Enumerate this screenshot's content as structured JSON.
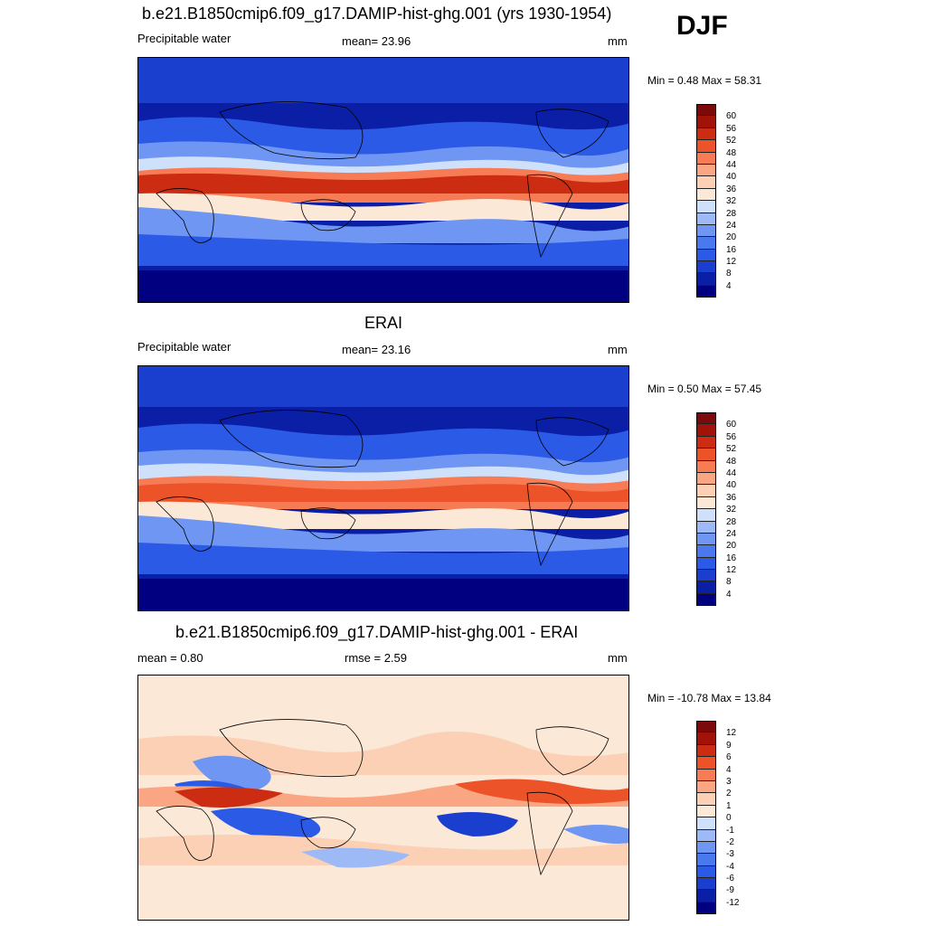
{
  "season": "DJF",
  "panels": [
    {
      "id": "model",
      "title": "b.e21.B1850cmip6.f09_g17.DAMIP-hist-ghg.001 (yrs 1930-1954)",
      "left_label": "Precipitable water",
      "center_label": "mean=  23.96",
      "right_label": "mm",
      "minmax": "Min =   0.48 Max =  58.31",
      "colorbar_labels": [
        "60",
        "56",
        "52",
        "48",
        "44",
        "40",
        "36",
        "32",
        "28",
        "24",
        "20",
        "16",
        "12",
        "8",
        "4"
      ]
    },
    {
      "id": "obs",
      "title": "ERAI",
      "left_label": "Precipitable water",
      "center_label": "mean=  23.16",
      "right_label": "mm",
      "minmax": "Min =   0.50 Max =  57.45",
      "colorbar_labels": [
        "60",
        "56",
        "52",
        "48",
        "44",
        "40",
        "36",
        "32",
        "28",
        "24",
        "20",
        "16",
        "12",
        "8",
        "4"
      ]
    },
    {
      "id": "diff",
      "title": "b.e21.B1850cmip6.f09_g17.DAMIP-hist-ghg.001 - ERAI",
      "left_label": "mean =   0.80",
      "center_label": "rmse =   2.59",
      "right_label": "mm",
      "minmax": "Min = -10.78 Max =  13.84",
      "colorbar_labels": [
        "12",
        "9",
        "6",
        "4",
        "3",
        "2",
        "1",
        "0",
        "-1",
        "-2",
        "-3",
        "-4",
        "-6",
        "-9",
        "-12"
      ]
    }
  ],
  "colors": {
    "abs_scale": [
      "#000080",
      "#0a1fa6",
      "#1a3fcf",
      "#2a5ae6",
      "#4a78ee",
      "#6e96f2",
      "#9db9f6",
      "#cfe0fa",
      "#fbe8d6",
      "#fcd0b5",
      "#fba683",
      "#f77c55",
      "#ec5329",
      "#cc2c12",
      "#a11208",
      "#7c0a0a"
    ],
    "diff_scale": [
      "#000080",
      "#0a1fa6",
      "#1a3fcf",
      "#2a5ae6",
      "#4a78ee",
      "#6e96f2",
      "#9db9f6",
      "#cfe0fa",
      "#fbe8d6",
      "#fcd0b5",
      "#fba683",
      "#f77c55",
      "#ec5329",
      "#cc2c12",
      "#a11208",
      "#7c0a0a"
    ]
  }
}
